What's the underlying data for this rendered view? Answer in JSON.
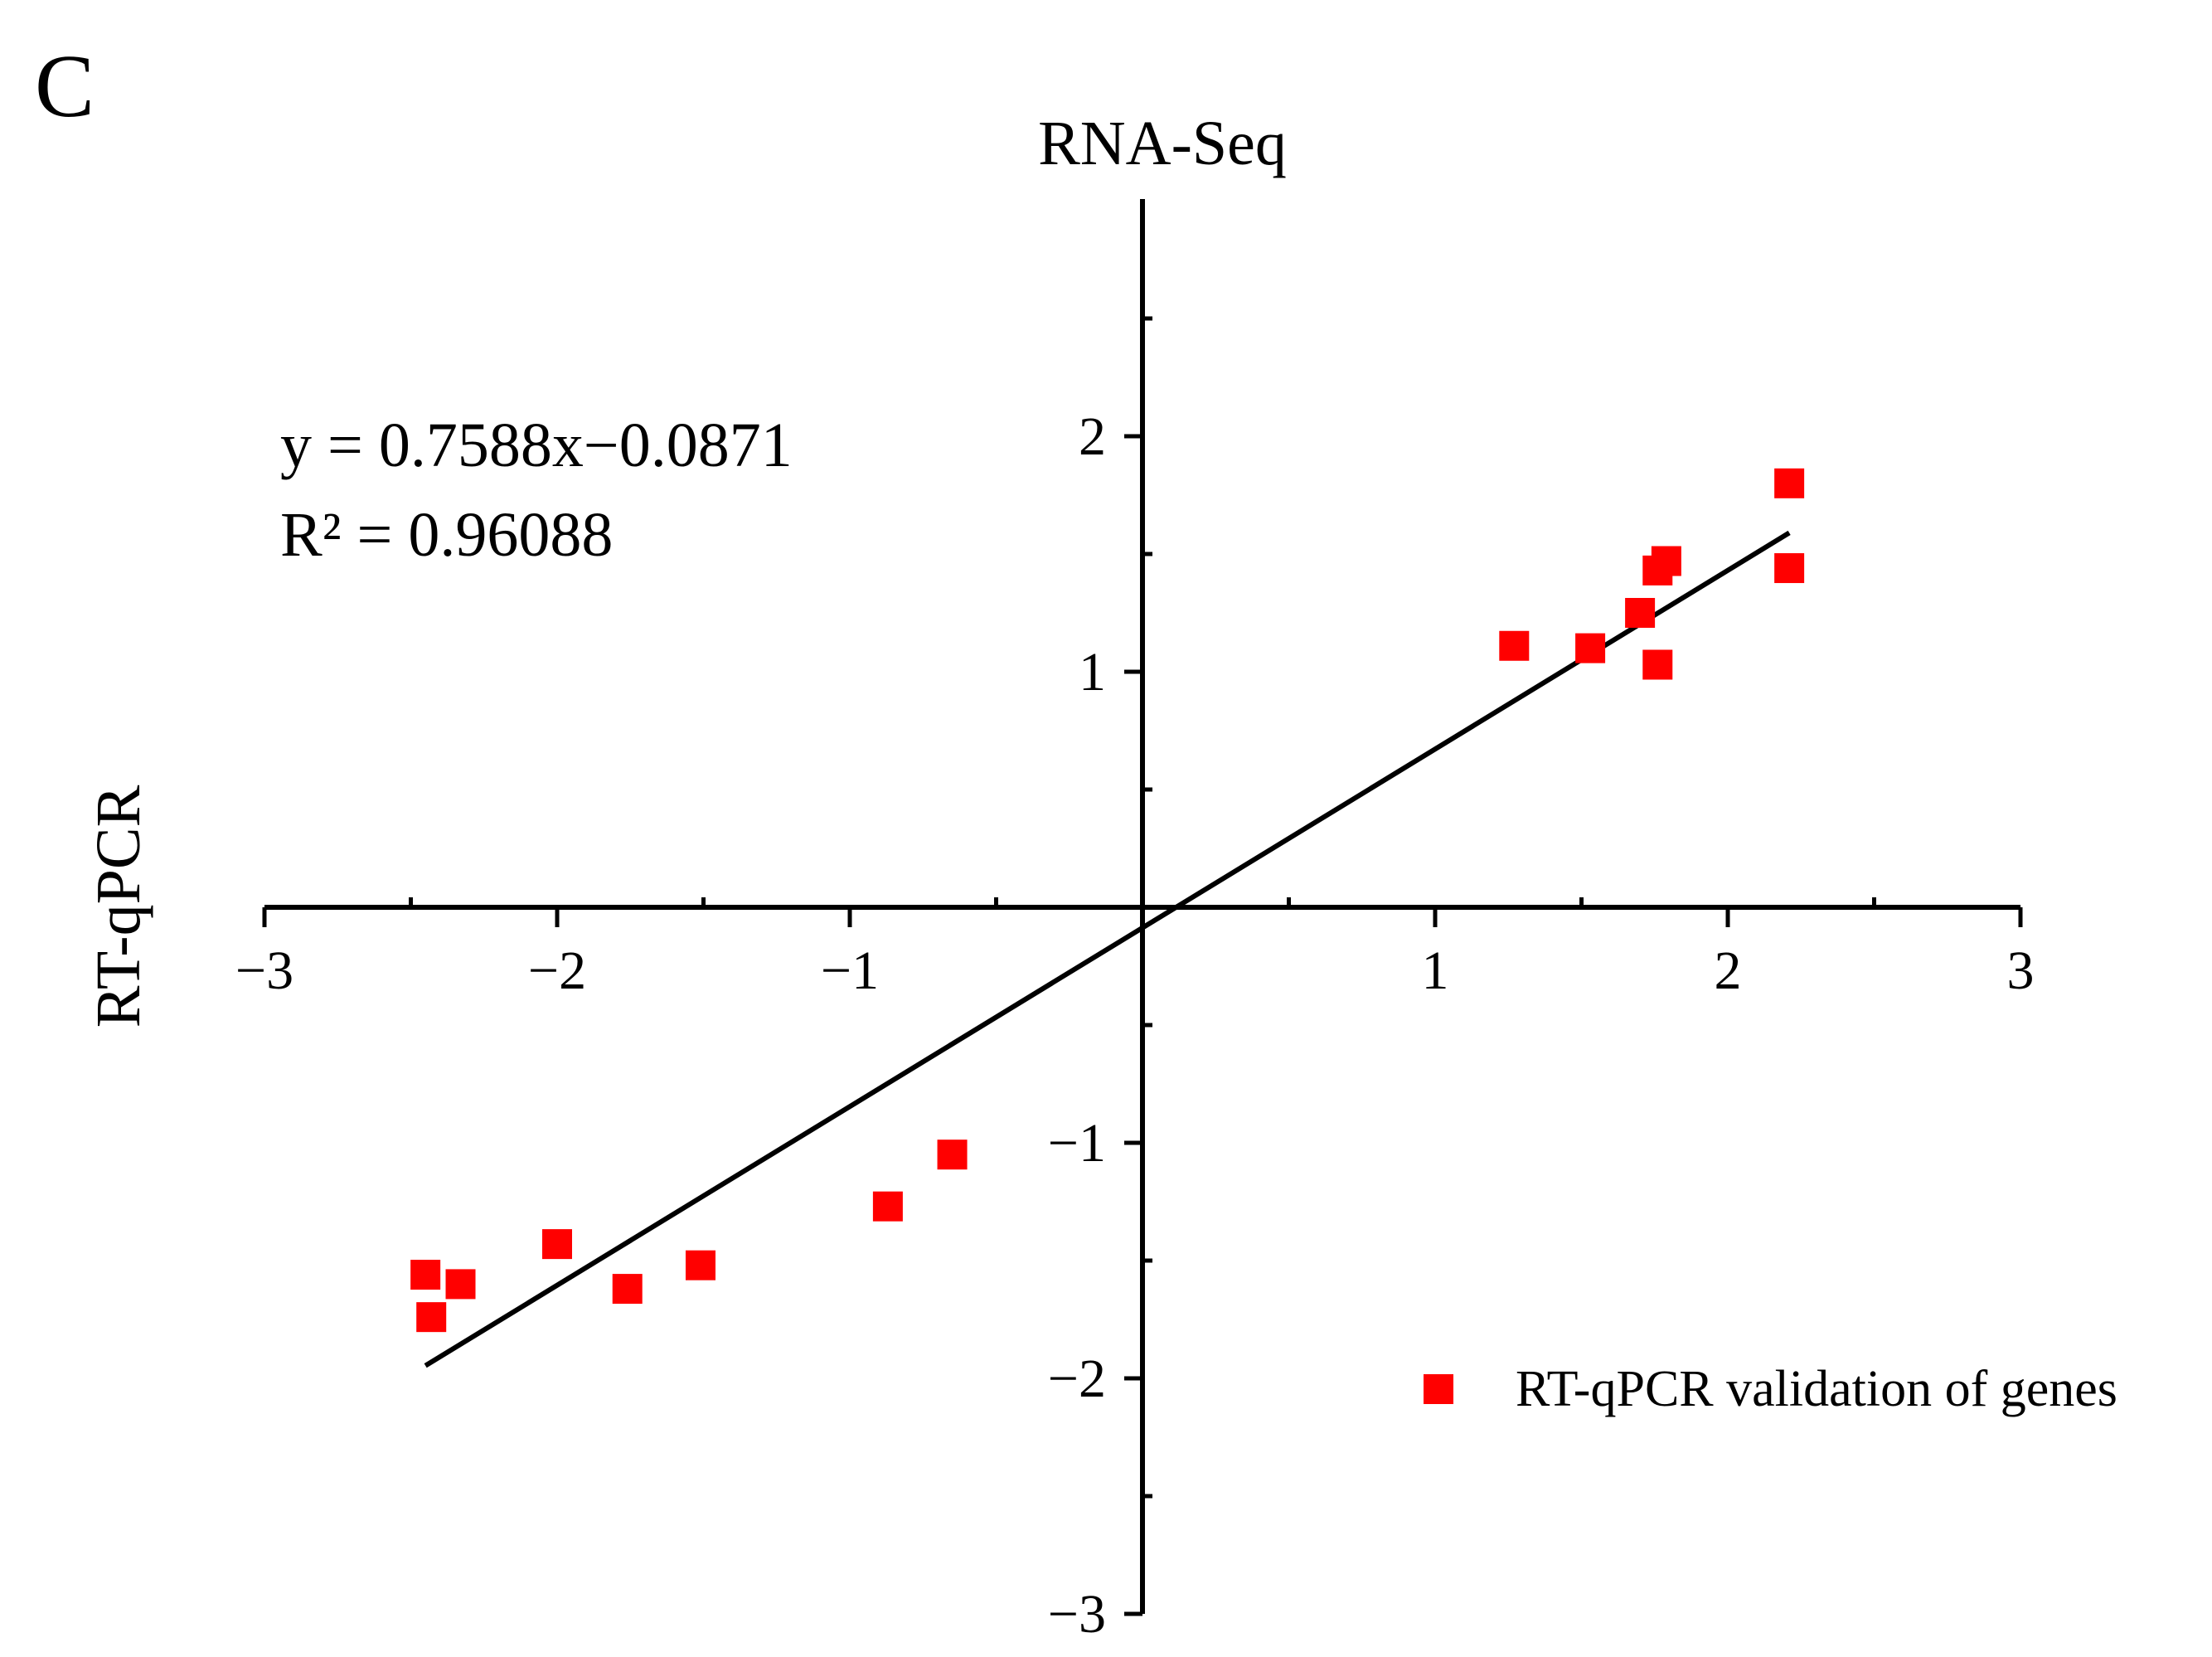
{
  "panel_label": "C",
  "chart_data": {
    "type": "scatter",
    "title": "",
    "xlabel": "RNA-Seq",
    "ylabel": "RT-qPCR",
    "xlim": [
      -3,
      3
    ],
    "ylim": [
      -3,
      3
    ],
    "x_ticks": [
      -3,
      -2,
      -1,
      1,
      2,
      3
    ],
    "x_tick_labels": [
      "−3",
      "−2",
      "−1",
      "1",
      "2",
      "3"
    ],
    "y_ticks": [
      -3,
      -2,
      -1,
      1,
      2
    ],
    "y_tick_labels": [
      "−3",
      "−2",
      "−1",
      "1",
      "2"
    ],
    "x_minor_step": 0.5,
    "y_minor_step": 0.5,
    "grid": false,
    "axes_style": "crossing-at-origin",
    "series": [
      {
        "name": "RT-qPCR validation of genes",
        "color": "#ff0000",
        "marker": "square",
        "points": [
          {
            "x": -2.45,
            "y": -1.56
          },
          {
            "x": -2.43,
            "y": -1.74
          },
          {
            "x": -2.33,
            "y": -1.6
          },
          {
            "x": -2.0,
            "y": -1.43
          },
          {
            "x": -1.76,
            "y": -1.62
          },
          {
            "x": -1.51,
            "y": -1.52
          },
          {
            "x": -0.87,
            "y": -1.27
          },
          {
            "x": -0.65,
            "y": -1.05
          },
          {
            "x": 1.27,
            "y": 1.11
          },
          {
            "x": 1.53,
            "y": 1.1
          },
          {
            "x": 1.7,
            "y": 1.25
          },
          {
            "x": 1.76,
            "y": 1.43
          },
          {
            "x": 1.79,
            "y": 1.47
          },
          {
            "x": 1.76,
            "y": 1.03
          },
          {
            "x": 2.21,
            "y": 1.8
          },
          {
            "x": 2.21,
            "y": 1.44
          }
        ]
      }
    ],
    "fit_line": {
      "slope": 0.7588,
      "intercept": -0.0871,
      "x_range": [
        -2.45,
        2.21
      ],
      "color": "#000000"
    },
    "annotations": {
      "equation": "y = 0.7588x−0.0871",
      "r_squared": "R² = 0.96088"
    },
    "legend": {
      "placement": "bottom-right",
      "entries": [
        "RT-qPCR validation of genes"
      ]
    }
  }
}
